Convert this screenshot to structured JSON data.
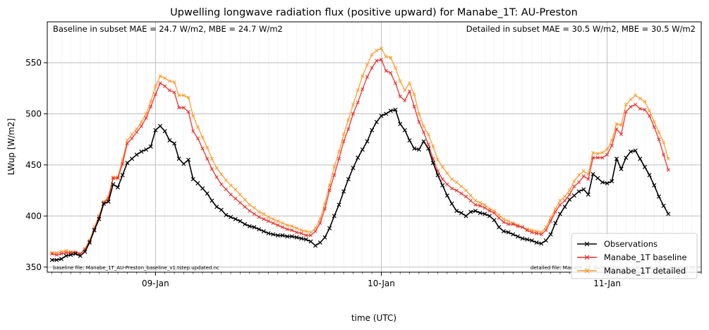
{
  "chart_data": {
    "type": "line",
    "title": "Upwelling longwave radiation flux (positive upward) for Manabe_1T: AU-Preston",
    "xlabel": "time (UTC)",
    "ylabel": "LWup [W/m2]",
    "ylim": [
      345,
      590
    ],
    "yticks": [
      350,
      400,
      450,
      500,
      550
    ],
    "x_start": "2008-01-08T13:00",
    "x_step_hours": 0.5,
    "xticks": [
      "09-Jan",
      "10-Jan",
      "11-Jan"
    ],
    "grid": true,
    "legend_position": "lower-right",
    "annotations": {
      "baseline_metrics": "Baseline in subset MAE = 24.7 W/m2, MBE = 24.7 W/m2",
      "detailed_metrics": "Detailed in subset MAE = 30.5 W/m2, MBE = 30.5 W/m2",
      "baseline_file": "baseline file: Manabe_1T_AU-Preston_baseline_v1.tstep.updated.nc",
      "detailed_file": "detailed file: Manabe_1T_AU-Preston_detailed_v1.tstep.updated.nc"
    },
    "series": [
      {
        "name": "Observations",
        "color": "#000000",
        "values": [
          357,
          357,
          358,
          361,
          362,
          363,
          361,
          365,
          374,
          386,
          397,
          412,
          414,
          431,
          428,
          440,
          452,
          456,
          460,
          463,
          465,
          468,
          484,
          488,
          483,
          474,
          471,
          456,
          451,
          455,
          436,
          432,
          427,
          422,
          415,
          409,
          406,
          401,
          399,
          397,
          395,
          392,
          390,
          389,
          387,
          385,
          383,
          382,
          381,
          381,
          380,
          380,
          379,
          378,
          377,
          375,
          371,
          374,
          379,
          388,
          400,
          411,
          424,
          436,
          447,
          457,
          465,
          473,
          484,
          492,
          498,
          500,
          503,
          504,
          490,
          484,
          474,
          466,
          465,
          473,
          466,
          452,
          440,
          430,
          420,
          412,
          405,
          403,
          400,
          404,
          405,
          403,
          402,
          400,
          396,
          389,
          385,
          384,
          382,
          380,
          378,
          377,
          376,
          374,
          373,
          376,
          382,
          393,
          402,
          409,
          416,
          420,
          424,
          426,
          421,
          441,
          437,
          433,
          432,
          434,
          456,
          446,
          457,
          463,
          464,
          456,
          448,
          440,
          430,
          419,
          410,
          402
        ]
      },
      {
        "name": "Manabe_1T baseline",
        "color": "#ee2a2a",
        "values": [
          363,
          362,
          363,
          364,
          364,
          364,
          363,
          367,
          375,
          387,
          399,
          413,
          417,
          437,
          437,
          451,
          471,
          476,
          482,
          488,
          496,
          507,
          519,
          530,
          527,
          523,
          521,
          506,
          506,
          502,
          483,
          476,
          466,
          456,
          446,
          438,
          431,
          426,
          421,
          417,
          413,
          409,
          405,
          402,
          399,
          397,
          395,
          393,
          391,
          389,
          387,
          386,
          384,
          383,
          381,
          381,
          385,
          393,
          407,
          425,
          440,
          456,
          473,
          485,
          500,
          511,
          524,
          536,
          545,
          552,
          553,
          542,
          540,
          530,
          517,
          513,
          522,
          507,
          492,
          482,
          470,
          456,
          444,
          436,
          431,
          427,
          425,
          422,
          419,
          415,
          411,
          410,
          408,
          405,
          403,
          398,
          394,
          392,
          392,
          390,
          389,
          386,
          384,
          383,
          382,
          386,
          395,
          404,
          411,
          415,
          421,
          429,
          433,
          439,
          436,
          457,
          457,
          457,
          460,
          469,
          485,
          480,
          502,
          507,
          509,
          505,
          504,
          498,
          487,
          475,
          460,
          445
        ]
      },
      {
        "name": "Manabe_1T detailed",
        "color": "#ff9a2a",
        "values": [
          364,
          364,
          365,
          366,
          365,
          365,
          363,
          368,
          376,
          389,
          400,
          414,
          419,
          438,
          438,
          455,
          474,
          480,
          485,
          492,
          500,
          512,
          527,
          537,
          535,
          532,
          531,
          518,
          518,
          516,
          498,
          487,
          477,
          467,
          456,
          447,
          441,
          435,
          430,
          426,
          421,
          416,
          411,
          408,
          404,
          402,
          399,
          397,
          395,
          393,
          391,
          390,
          388,
          386,
          385,
          384,
          388,
          397,
          412,
          430,
          448,
          463,
          480,
          494,
          509,
          523,
          537,
          548,
          558,
          562,
          564,
          556,
          555,
          545,
          532,
          523,
          530,
          519,
          500,
          488,
          480,
          468,
          455,
          448,
          442,
          436,
          433,
          429,
          425,
          420,
          415,
          413,
          411,
          407,
          405,
          401,
          397,
          395,
          393,
          391,
          389,
          387,
          386,
          385,
          384,
          389,
          398,
          407,
          415,
          419,
          425,
          434,
          440,
          444,
          441,
          462,
          461,
          462,
          465,
          474,
          490,
          489,
          509,
          514,
          518,
          515,
          512,
          503,
          492,
          482,
          472,
          456
        ]
      }
    ]
  }
}
